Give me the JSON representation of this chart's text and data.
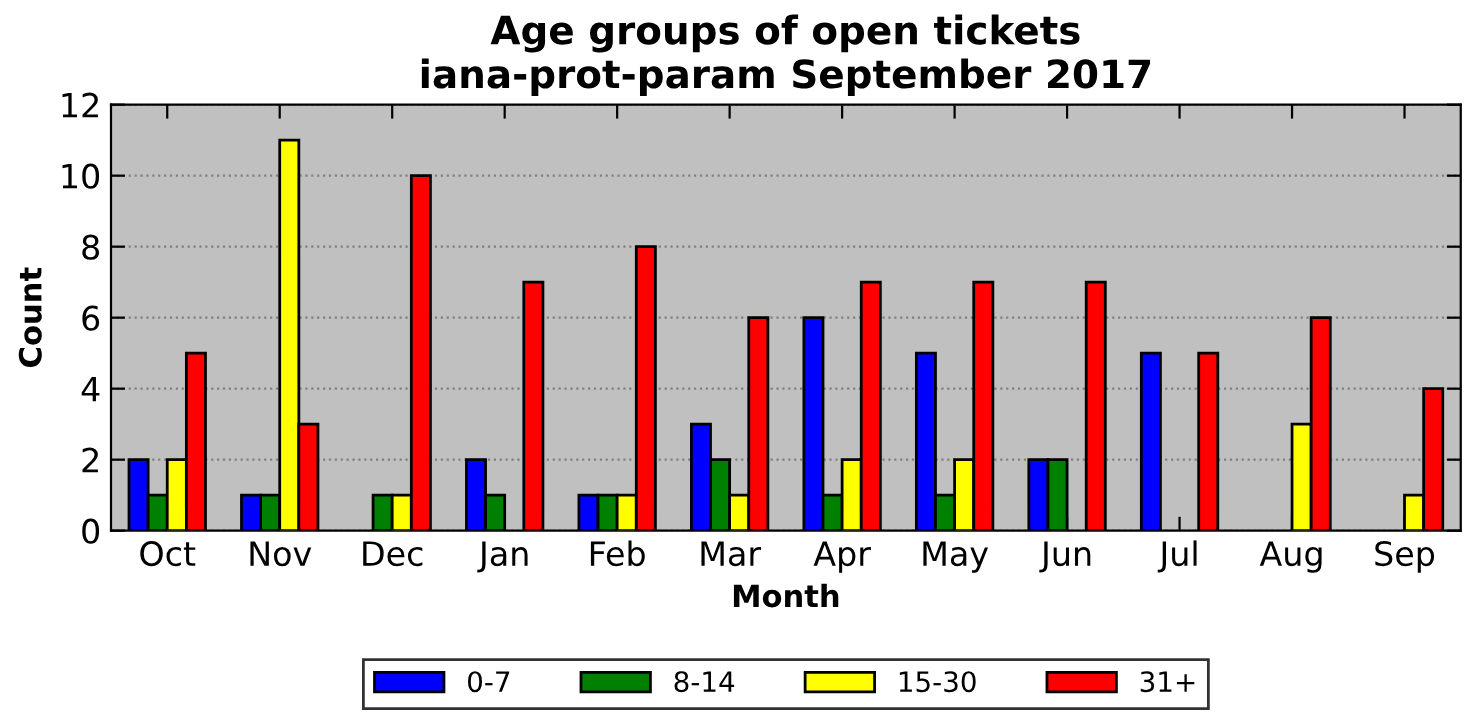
{
  "chart_data": {
    "type": "bar",
    "title": "Age groups of open tickets\niana-prot-param September 2017",
    "xlabel": "Month",
    "ylabel": "Count",
    "categories": [
      "Oct",
      "Nov",
      "Dec",
      "Jan",
      "Feb",
      "Mar",
      "Apr",
      "May",
      "Jun",
      "Jul",
      "Aug",
      "Sep"
    ],
    "series": [
      {
        "name": "0-7",
        "color": "#0000ff",
        "values": [
          2,
          1,
          0,
          2,
          1,
          3,
          6,
          5,
          2,
          5,
          0,
          0
        ]
      },
      {
        "name": "8-14",
        "color": "#008000",
        "values": [
          1,
          1,
          1,
          1,
          1,
          2,
          1,
          1,
          2,
          0,
          0,
          0
        ]
      },
      {
        "name": "15-30",
        "color": "#ffff00",
        "values": [
          2,
          11,
          1,
          0,
          1,
          1,
          2,
          2,
          0,
          0,
          3,
          1
        ]
      },
      {
        "name": "31+",
        "color": "#ff0000",
        "values": [
          5,
          3,
          10,
          7,
          8,
          6,
          7,
          7,
          7,
          5,
          6,
          4
        ]
      }
    ],
    "ylim": [
      0,
      12
    ],
    "yticks": [
      0,
      2,
      4,
      6,
      8,
      10,
      12
    ],
    "grid": "y",
    "legend": "bottom"
  }
}
